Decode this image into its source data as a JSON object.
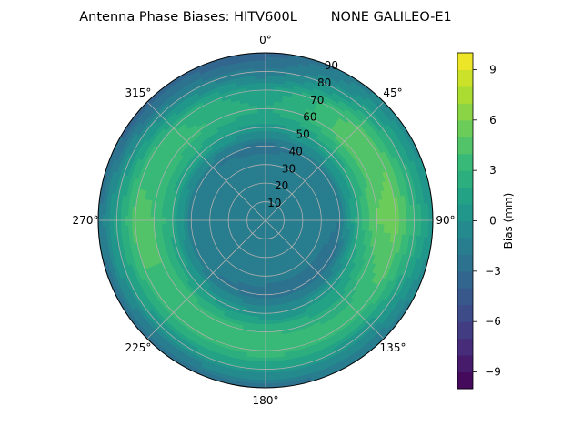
{
  "chart_data": {
    "type": "heatmap",
    "projection": "polar",
    "title": "Antenna Phase Biases: HITV600L        NONE GALILEO-E1",
    "angle_direction": "clockwise",
    "zero_location": "top",
    "angle_ticks": [
      {
        "deg": 0,
        "label": "0°"
      },
      {
        "deg": 45,
        "label": "45°"
      },
      {
        "deg": 90,
        "label": "90°"
      },
      {
        "deg": 135,
        "label": "135°"
      },
      {
        "deg": 180,
        "label": "180°"
      },
      {
        "deg": 225,
        "label": "225°"
      },
      {
        "deg": 270,
        "label": "270°"
      },
      {
        "deg": 315,
        "label": "315°"
      }
    ],
    "radial_range": [
      0,
      90
    ],
    "radial_ticks": [
      10,
      20,
      30,
      40,
      50,
      60,
      70,
      80,
      90
    ],
    "radial_tick_labels": [
      "10",
      "20",
      "30",
      "40",
      "50",
      "60",
      "70",
      "80",
      "90"
    ],
    "grid": true,
    "colormap": "viridis",
    "colorbar": {
      "label": "Bias (mm)",
      "range": [
        -10,
        10
      ],
      "levels": 20,
      "ticks": [
        -9,
        -6,
        -3,
        0,
        3,
        6,
        9
      ],
      "tick_labels": [
        "−9",
        "−6",
        "−3",
        "0",
        "3",
        "6",
        "9"
      ]
    },
    "field_samples": {
      "zenith_angle": [
        0,
        10,
        20,
        30,
        40,
        50,
        60,
        70,
        80,
        90
      ],
      "azimuth": [
        0,
        45,
        90,
        135,
        180,
        225,
        270,
        315
      ],
      "bias_mm": [
        [
          -2.0,
          -2.0,
          -2.0,
          -2.0,
          -2.0,
          -2.0,
          -2.0,
          -2.0
        ],
        [
          -1.5,
          -1.5,
          -1.5,
          -1.5,
          -1.5,
          -1.5,
          -1.5,
          -1.5
        ],
        [
          -1.0,
          -1.0,
          -1.0,
          -1.0,
          -1.0,
          -1.0,
          -1.0,
          -1.0
        ],
        [
          -1.5,
          -1.0,
          -1.5,
          -1.5,
          -1.5,
          -1.5,
          -1.5,
          -1.5
        ],
        [
          -2.5,
          -1.5,
          -2.0,
          -3.0,
          -2.5,
          -2.0,
          -1.5,
          -2.0
        ],
        [
          0.5,
          1.5,
          2.5,
          0.5,
          0.0,
          1.0,
          2.0,
          1.5
        ],
        [
          2.0,
          4.5,
          5.0,
          2.5,
          3.0,
          4.0,
          4.0,
          3.5
        ],
        [
          1.0,
          4.5,
          5.5,
          3.5,
          4.0,
          3.5,
          4.5,
          3.0
        ],
        [
          -2.0,
          1.5,
          3.0,
          0.5,
          1.0,
          0.5,
          1.5,
          -0.5
        ],
        [
          -3.5,
          -1.0,
          0.5,
          -2.0,
          -2.5,
          -3.0,
          -2.0,
          -4.0
        ]
      ]
    }
  }
}
